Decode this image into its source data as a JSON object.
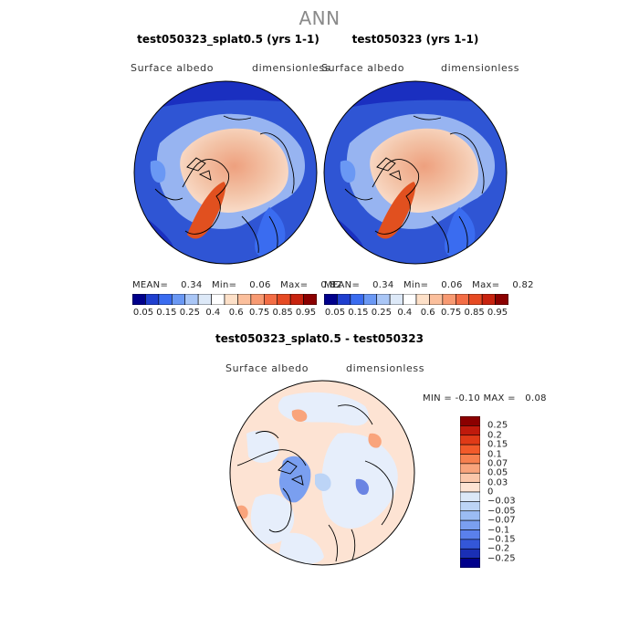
{
  "page_title": "ANN",
  "panels": [
    {
      "title": "test050323_splat0.5 (yrs 1-1)",
      "variable": "Surface albedo",
      "units": "dimensionless",
      "stats": {
        "mean_label": "MEAN=",
        "mean": "0.34",
        "min_label": "Min=",
        "min": "0.06",
        "max_label": "Max=",
        "max": "0.82"
      }
    },
    {
      "title": "test050323 (yrs 1-1)",
      "variable": "Surface albedo",
      "units": "dimensionless",
      "stats": {
        "mean_label": "MEAN=",
        "mean": "0.34",
        "min_label": "Min=",
        "min": "0.06",
        "max_label": "Max=",
        "max": "0.82"
      }
    },
    {
      "title": "test050323_splat0.5 - test050323",
      "variable": "Surface albedo",
      "units": "dimensionless",
      "stats": {
        "min_label": "MIN =",
        "min": "-0.10",
        "max_label": "MAX =",
        "max": "0.08"
      }
    }
  ],
  "colorbars": {
    "albedo": {
      "ticks": [
        "0.05",
        "0.15",
        "0.25",
        "0.4",
        "0.6",
        "0.75",
        "0.85",
        "0.95"
      ],
      "colors": [
        "#00008b",
        "#1f3fcf",
        "#3a6cf0",
        "#6a98f4",
        "#a9c6f6",
        "#dde9f8",
        "#ffffff",
        "#fde0c8",
        "#fbbf9c",
        "#f89a72",
        "#f36d45",
        "#e64a23",
        "#c8230f",
        "#8b0000"
      ]
    },
    "difference": {
      "ticks": [
        "0.25",
        "0.2",
        "0.15",
        "0.1",
        "0.07",
        "0.05",
        "0.03",
        "0",
        "-0.03",
        "-0.05",
        "-0.07",
        "-0.1",
        "-0.15",
        "-0.2",
        "-0.25"
      ],
      "colors": [
        "#8b0000",
        "#c01a0c",
        "#e03a17",
        "#f25a2a",
        "#f7804f",
        "#f9a47c",
        "#fbc7aa",
        "#fde3d3",
        "#dbe8f8",
        "#bcd4f6",
        "#9bbcf3",
        "#7a9ff0",
        "#5a80ec",
        "#3457d8",
        "#1a2fb5",
        "#00008b"
      ]
    }
  },
  "map_colors": {
    "ocean": "#2f55d4",
    "ocean_deep": "#1a2fc0",
    "ice": "#f3c4a8",
    "ice_center": "#eea07e",
    "greenland": "#e1501f",
    "land_pale": "#a9c6f6",
    "diff_background": "#fde3d3",
    "diff_neutral": "#e6eefb",
    "diff_blue": "#7a9ff0"
  }
}
